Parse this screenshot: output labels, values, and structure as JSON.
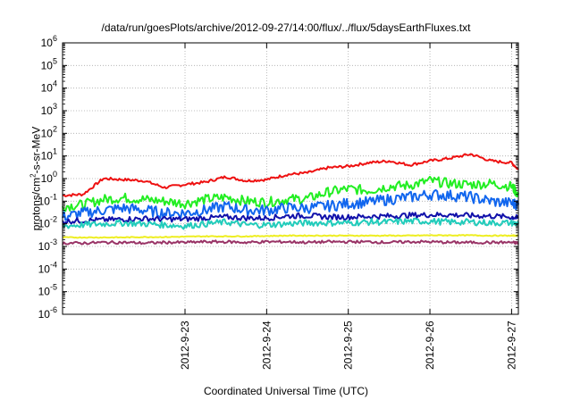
{
  "chart_data": {
    "type": "line",
    "title": "/data/run/goesPlots/archive/2012-09-27/14:00/flux/../flux/5daysEarthFluxes.txt",
    "xlabel": "Coordinated Universal Time (UTC)",
    "ylabel": {
      "pre": "protons/cm",
      "sup": "2",
      "post": "-s-sr-MeV"
    },
    "x_ticks": [
      "2012-9-23",
      "2012-9-24",
      "2012-9-25",
      "2012-9-26",
      "2012-9-27"
    ],
    "xlim": [
      "2012-09-22 00:00",
      "2012-09-27 14:00"
    ],
    "yscale": "log",
    "ylim_exp": [
      -6,
      6
    ],
    "y_ticks": [
      {
        "base": "10",
        "exp": "-6"
      },
      {
        "base": "10",
        "exp": "-5"
      },
      {
        "base": "10",
        "exp": "-4"
      },
      {
        "base": "10",
        "exp": "-3"
      },
      {
        "base": "10",
        "exp": "-2"
      },
      {
        "base": "10",
        "exp": "-1"
      },
      {
        "base": "10",
        "exp": "0"
      },
      {
        "base": "10",
        "exp": "1"
      },
      {
        "base": "10",
        "exp": "2"
      },
      {
        "base": "10",
        "exp": "3"
      },
      {
        "base": "10",
        "exp": "4"
      },
      {
        "base": "10",
        "exp": "5"
      },
      {
        "base": "10",
        "exp": "6"
      }
    ],
    "grid": true,
    "x_dates": [
      "2012-09-22 00:00",
      "2012-09-22 06:00",
      "2012-09-22 12:00",
      "2012-09-22 18:00",
      "2012-09-23 00:00",
      "2012-09-23 06:00",
      "2012-09-23 12:00",
      "2012-09-23 18:00",
      "2012-09-24 00:00",
      "2012-09-24 06:00",
      "2012-09-24 12:00",
      "2012-09-24 18:00",
      "2012-09-25 00:00",
      "2012-09-25 06:00",
      "2012-09-25 12:00",
      "2012-09-25 18:00",
      "2012-09-26 00:00",
      "2012-09-26 06:00",
      "2012-09-26 12:00",
      "2012-09-26 18:00",
      "2012-09-27 00:00",
      "2012-09-27 06:00",
      "2012-09-27 12:00",
      "2012-09-27 14:00"
    ],
    "series": [
      {
        "color": "#ee1111",
        "values": [
          0.18,
          0.2,
          1.0,
          0.9,
          0.8,
          0.4,
          0.55,
          0.7,
          1.2,
          0.8,
          0.9,
          1.5,
          1.8,
          3.0,
          3.5,
          5.0,
          6.0,
          4.0,
          6.0,
          8.0,
          12.0,
          6.0,
          5.0,
          2.5
        ]
      },
      {
        "color": "#22ee22",
        "values": [
          0.06,
          0.07,
          0.12,
          0.14,
          0.12,
          0.1,
          0.08,
          0.12,
          0.15,
          0.1,
          0.09,
          0.12,
          0.13,
          0.25,
          0.35,
          0.3,
          0.45,
          0.5,
          0.8,
          0.6,
          0.55,
          0.6,
          0.45,
          0.2
        ]
      },
      {
        "color": "#1166ee",
        "values": [
          0.02,
          0.03,
          0.04,
          0.05,
          0.04,
          0.03,
          0.03,
          0.04,
          0.06,
          0.04,
          0.04,
          0.05,
          0.05,
          0.06,
          0.08,
          0.09,
          0.12,
          0.15,
          0.2,
          0.18,
          0.15,
          0.1,
          0.08,
          0.07
        ]
      },
      {
        "color": "#1111aa",
        "values": [
          0.013,
          0.014,
          0.015,
          0.016,
          0.017,
          0.016,
          0.016,
          0.018,
          0.02,
          0.018,
          0.018,
          0.022,
          0.023,
          0.02,
          0.02,
          0.021,
          0.022,
          0.024,
          0.025,
          0.025,
          0.023,
          0.022,
          0.02,
          0.018
        ]
      },
      {
        "color": "#22ccbb",
        "values": [
          0.008,
          0.009,
          0.01,
          0.011,
          0.01,
          0.009,
          0.008,
          0.01,
          0.012,
          0.009,
          0.009,
          0.01,
          0.011,
          0.011,
          0.011,
          0.012,
          0.012,
          0.013,
          0.013,
          0.012,
          0.012,
          0.011,
          0.011,
          0.01
        ]
      },
      {
        "color": "#eeee22",
        "values": [
          0.0025,
          0.0025,
          0.0025,
          0.0025,
          0.0026,
          0.0026,
          0.0027,
          0.0028,
          0.0028,
          0.0028,
          0.0029,
          0.003,
          0.003,
          0.003,
          0.003,
          0.003,
          0.003,
          0.003,
          0.0031,
          0.0031,
          0.0031,
          0.003,
          0.003,
          0.003
        ]
      },
      {
        "color": "#993366",
        "values": [
          0.0014,
          0.0014,
          0.0015,
          0.0015,
          0.0014,
          0.0015,
          0.0015,
          0.0016,
          0.0016,
          0.0015,
          0.0016,
          0.0016,
          0.0015,
          0.0016,
          0.0016,
          0.0016,
          0.0015,
          0.0016,
          0.0016,
          0.0015,
          0.0015,
          0.0015,
          0.0015,
          0.0014
        ]
      }
    ]
  }
}
